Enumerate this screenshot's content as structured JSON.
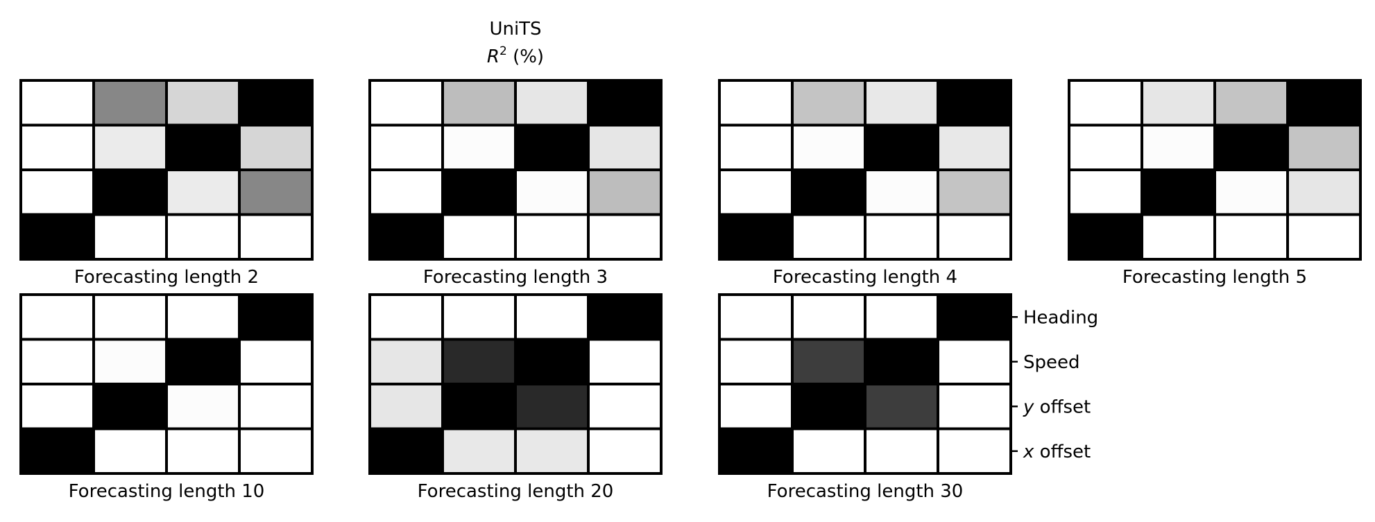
{
  "figure": {
    "title_line1": "UniTS",
    "title_r": "R",
    "title_sup": "2",
    "title_rest": " (%)"
  },
  "row_labels": [
    {
      "italic": "",
      "text": "Heading"
    },
    {
      "italic": "",
      "text": "Speed"
    },
    {
      "italic": "y",
      "text": " offset"
    },
    {
      "italic": "x",
      "text": " offset"
    }
  ],
  "chart_data": {
    "type": "heatmap",
    "value_scale": "darkness fraction (0 = white, 1 = black)",
    "panels": [
      {
        "label": "Forecasting length 2",
        "cells": [
          [
            0,
            0.47,
            0.16,
            1
          ],
          [
            0,
            0.08,
            1,
            0.16
          ],
          [
            0,
            1,
            0.08,
            0.47
          ],
          [
            1,
            0,
            0,
            0
          ]
        ]
      },
      {
        "label": "Forecasting length 3",
        "cells": [
          [
            0,
            0.26,
            0.1,
            1
          ],
          [
            0,
            0.01,
            1,
            0.1
          ],
          [
            0,
            1,
            0.01,
            0.26
          ],
          [
            1,
            0,
            0,
            0
          ]
        ]
      },
      {
        "label": "Forecasting length 4",
        "cells": [
          [
            0,
            0.23,
            0.09,
            1
          ],
          [
            0,
            0.01,
            1,
            0.09
          ],
          [
            0,
            1,
            0.01,
            0.23
          ],
          [
            1,
            0,
            0,
            0
          ]
        ]
      },
      {
        "label": "Forecasting length 5",
        "cells": [
          [
            0,
            0.1,
            0.23,
            1
          ],
          [
            0,
            0.01,
            1,
            0.23
          ],
          [
            0,
            1,
            0.01,
            0.1
          ],
          [
            1,
            0,
            0,
            0
          ]
        ]
      },
      {
        "label": "Forecasting length 10",
        "cells": [
          [
            0,
            0,
            0,
            1
          ],
          [
            0,
            0.01,
            1,
            0
          ],
          [
            0,
            1,
            0.01,
            0
          ],
          [
            1,
            0,
            0,
            0
          ]
        ]
      },
      {
        "label": "Forecasting length 20",
        "cells": [
          [
            0,
            0,
            0,
            1
          ],
          [
            0.1,
            0.84,
            1,
            0
          ],
          [
            0.1,
            1,
            0.84,
            0
          ],
          [
            1,
            0.09,
            0.09,
            0
          ]
        ]
      },
      {
        "label": "Forecasting length 30",
        "cells": [
          [
            0,
            0,
            0,
            1
          ],
          [
            0,
            0.76,
            1,
            0
          ],
          [
            0,
            1,
            0.76,
            0
          ],
          [
            1,
            0,
            0,
            0
          ]
        ]
      }
    ],
    "grid": true,
    "legend": "none"
  }
}
